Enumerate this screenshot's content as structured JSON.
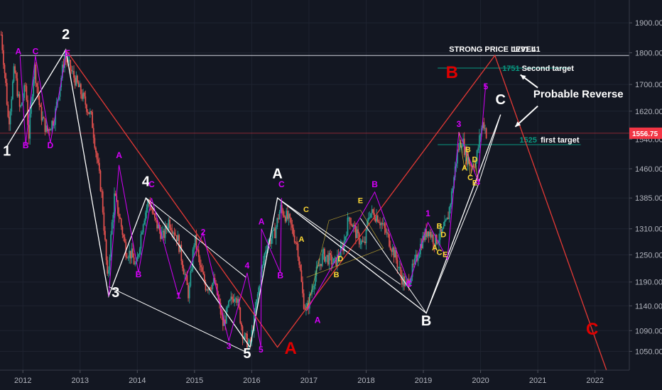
{
  "chart_data": {
    "type": "candlestick",
    "y_axis": {
      "ticks": [
        1050,
        1090,
        1140,
        1190,
        1250,
        1310,
        1385,
        1460,
        1540,
        1620,
        1700,
        1800,
        1900
      ],
      "tick_labels": [
        "1050.00",
        "1090.00",
        "1140.00",
        "1190.00",
        "1250.00",
        "1310.00",
        "1385.00",
        "1460.00",
        "1540.00",
        "1620.00",
        "1700.00",
        "1800.00",
        "1900.00"
      ],
      "scale": "log",
      "ylim": [
        1015,
        1980
      ]
    },
    "x_axis": {
      "ticks": [
        2012,
        2013,
        2014,
        2015,
        2016,
        2017,
        2018,
        2019,
        2020,
        2021,
        2022
      ],
      "tick_labels": [
        "2012",
        "2013",
        "2014",
        "2015",
        "2016",
        "2017",
        "2018",
        "2019",
        "2020",
        "2021",
        "2022"
      ],
      "xlim": [
        2011.6,
        2022.6
      ]
    },
    "current_price": {
      "label": "1556.75",
      "value": 1556.75,
      "color": "#f23645"
    },
    "price_anchors": [
      [
        2011.62,
        1860
      ],
      [
        2011.7,
        1700
      ],
      [
        2011.75,
        1580
      ],
      [
        2011.85,
        1750
      ],
      [
        2011.95,
        1620
      ],
      [
        2012.05,
        1700
      ],
      [
        2012.1,
        1540
      ],
      [
        2012.2,
        1760
      ],
      [
        2012.3,
        1620
      ],
      [
        2012.42,
        1560
      ],
      [
        2012.55,
        1600
      ],
      [
        2012.65,
        1700
      ],
      [
        2012.73,
        1790
      ],
      [
        2012.85,
        1740
      ],
      [
        2013.0,
        1680
      ],
      [
        2013.2,
        1600
      ],
      [
        2013.3,
        1480
      ],
      [
        2013.38,
        1390
      ],
      [
        2013.45,
        1250
      ],
      [
        2013.48,
        1190
      ],
      [
        2013.52,
        1260
      ],
      [
        2013.6,
        1390
      ],
      [
        2013.7,
        1330
      ],
      [
        2013.8,
        1260
      ],
      [
        2013.9,
        1250
      ],
      [
        2013.98,
        1220
      ],
      [
        2014.1,
        1330
      ],
      [
        2014.2,
        1380
      ],
      [
        2014.3,
        1330
      ],
      [
        2014.45,
        1290
      ],
      [
        2014.55,
        1330
      ],
      [
        2014.7,
        1290
      ],
      [
        2014.9,
        1160
      ],
      [
        2015.0,
        1290
      ],
      [
        2015.1,
        1220
      ],
      [
        2015.2,
        1180
      ],
      [
        2015.35,
        1190
      ],
      [
        2015.5,
        1100
      ],
      [
        2015.6,
        1140
      ],
      [
        2015.72,
        1170
      ],
      [
        2015.85,
        1080
      ],
      [
        2015.97,
        1060
      ],
      [
        2016.1,
        1160
      ],
      [
        2016.25,
        1270
      ],
      [
        2016.4,
        1300
      ],
      [
        2016.5,
        1360
      ],
      [
        2016.65,
        1330
      ],
      [
        2016.8,
        1270
      ],
      [
        2016.9,
        1150
      ],
      [
        2016.96,
        1130
      ],
      [
        2017.1,
        1200
      ],
      [
        2017.25,
        1250
      ],
      [
        2017.45,
        1230
      ],
      [
        2017.6,
        1270
      ],
      [
        2017.7,
        1340
      ],
      [
        2017.85,
        1290
      ],
      [
        2017.97,
        1270
      ],
      [
        2018.05,
        1350
      ],
      [
        2018.2,
        1340
      ],
      [
        2018.35,
        1300
      ],
      [
        2018.5,
        1250
      ],
      [
        2018.62,
        1200
      ],
      [
        2018.7,
        1180
      ],
      [
        2018.85,
        1230
      ],
      [
        2018.97,
        1280
      ],
      [
        2019.08,
        1310
      ],
      [
        2019.2,
        1280
      ],
      [
        2019.33,
        1300
      ],
      [
        2019.42,
        1330
      ],
      [
        2019.5,
        1400
      ],
      [
        2019.6,
        1510
      ],
      [
        2019.68,
        1540
      ],
      [
        2019.75,
        1490
      ],
      [
        2019.85,
        1470
      ],
      [
        2019.92,
        1480
      ],
      [
        2020.0,
        1560
      ],
      [
        2020.05,
        1590
      ],
      [
        2020.1,
        1556
      ]
    ],
    "lines": [
      {
        "name": "STRONG PRICE LEVEL",
        "value": 1791.41,
        "label": "STRONG PRICE LEVEL",
        "value_label": "1791.41",
        "color": "#d1d4dc"
      },
      {
        "name": "Second target",
        "value": 1751,
        "value_label": "1751",
        "label": "Second target",
        "color": "#089981"
      },
      {
        "name": "first target",
        "value": 1525,
        "value_label": "1525",
        "label": "first  target",
        "color": "#089981"
      }
    ],
    "wave_labels": {
      "main_white": [
        {
          "text": "1",
          "x": 2011.72,
          "y": 1495
        },
        {
          "text": "2",
          "x": 2012.75,
          "y": 1845
        },
        {
          "text": "3",
          "x": 2013.62,
          "y": 1158
        },
        {
          "text": "4",
          "x": 2014.15,
          "y": 1415
        },
        {
          "text": "5",
          "x": 2015.92,
          "y": 1037
        },
        {
          "text": "A",
          "x": 2016.45,
          "y": 1435
        },
        {
          "text": "B",
          "x": 2019.05,
          "y": 1100
        },
        {
          "text": "C",
          "x": 2020.35,
          "y": 1640
        }
      ],
      "main_red": [
        {
          "text": "A",
          "x": 2016.68,
          "y": 1045
        },
        {
          "text": "B",
          "x": 2019.5,
          "y": 1720
        },
        {
          "text": "C",
          "x": 2021.95,
          "y": 1082
        }
      ],
      "magenta": [
        {
          "text": "A",
          "x": 2011.92,
          "y": 1795
        },
        {
          "text": "C",
          "x": 2012.22,
          "y": 1795
        },
        {
          "text": "E",
          "x": 2012.78,
          "y": 1790
        },
        {
          "text": "B",
          "x": 2012.05,
          "y": 1515
        },
        {
          "text": "D",
          "x": 2012.48,
          "y": 1515
        },
        {
          "text": "A",
          "x": 2013.68,
          "y": 1488
        },
        {
          "text": "C",
          "x": 2014.25,
          "y": 1412
        },
        {
          "text": "B",
          "x": 2014.02,
          "y": 1200
        },
        {
          "text": "1",
          "x": 2014.72,
          "y": 1155
        },
        {
          "text": "2",
          "x": 2015.15,
          "y": 1295
        },
        {
          "text": "3",
          "x": 2015.6,
          "y": 1055
        },
        {
          "text": "4",
          "x": 2015.92,
          "y": 1220
        },
        {
          "text": "5",
          "x": 2016.16,
          "y": 1048
        },
        {
          "text": "A",
          "x": 2016.17,
          "y": 1320
        },
        {
          "text": "C",
          "x": 2016.52,
          "y": 1412
        },
        {
          "text": "B",
          "x": 2016.5,
          "y": 1198
        },
        {
          "text": "A",
          "x": 2017.15,
          "y": 1105
        },
        {
          "text": "B",
          "x": 2018.15,
          "y": 1412
        },
        {
          "text": "C",
          "x": 2018.75,
          "y": 1180
        },
        {
          "text": "1",
          "x": 2019.08,
          "y": 1340
        },
        {
          "text": "3",
          "x": 2019.62,
          "y": 1575
        },
        {
          "text": "4",
          "x": 2019.95,
          "y": 1418
        },
        {
          "text": "5",
          "x": 2020.09,
          "y": 1685
        }
      ],
      "yellow": [
        {
          "text": "A",
          "x": 2016.87,
          "y": 1280
        },
        {
          "text": "C",
          "x": 2016.95,
          "y": 1350
        },
        {
          "text": "B",
          "x": 2017.48,
          "y": 1200
        },
        {
          "text": "D",
          "x": 2017.55,
          "y": 1235
        },
        {
          "text": "E",
          "x": 2017.9,
          "y": 1372
        },
        {
          "text": "B",
          "x": 2019.78,
          "y": 1505
        },
        {
          "text": "D",
          "x": 2019.9,
          "y": 1478
        },
        {
          "text": "A",
          "x": 2019.72,
          "y": 1455
        },
        {
          "text": "C",
          "x": 2019.82,
          "y": 1430
        },
        {
          "text": "E",
          "x": 2019.9,
          "y": 1417
        },
        {
          "text": "B",
          "x": 2019.28,
          "y": 1310
        },
        {
          "text": "D",
          "x": 2019.35,
          "y": 1290
        },
        {
          "text": "A",
          "x": 2019.2,
          "y": 1260
        },
        {
          "text": "C",
          "x": 2019.28,
          "y": 1250
        },
        {
          "text": "E",
          "x": 2019.38,
          "y": 1245
        }
      ]
    },
    "annotations": {
      "probable_reverse": "Probable Reverse"
    }
  }
}
